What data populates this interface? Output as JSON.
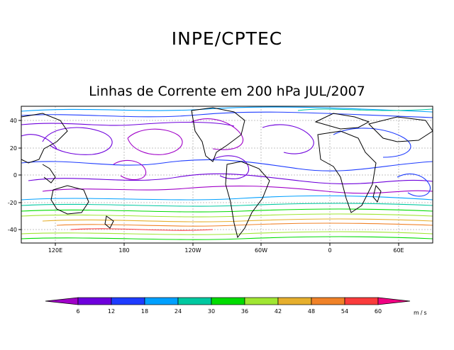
{
  "header": {
    "org": "INPE/CPTEC",
    "title": "Linhas de Corrente em 200 hPa JUL/2007"
  },
  "map": {
    "lat_ticks": [
      "40",
      "20",
      "0",
      "-20",
      "-40"
    ],
    "lon_ticks": [
      "120E",
      "180",
      "120W",
      "60W",
      "0",
      "60E"
    ],
    "lat_range": [
      -50,
      50
    ],
    "lon_range_note": "90E eastward to 90E (360 degrees)"
  },
  "colorbar": {
    "ticks": [
      "6",
      "12",
      "18",
      "24",
      "30",
      "36",
      "42",
      "48",
      "54",
      "60"
    ],
    "unit": "m/s",
    "colors": [
      "#a000c8",
      "#6e00dc",
      "#1e3cff",
      "#00a0ff",
      "#00c8a0",
      "#00dc00",
      "#a0e632",
      "#e6af2d",
      "#f08228",
      "#fa3c3c",
      "#f00082"
    ]
  }
}
